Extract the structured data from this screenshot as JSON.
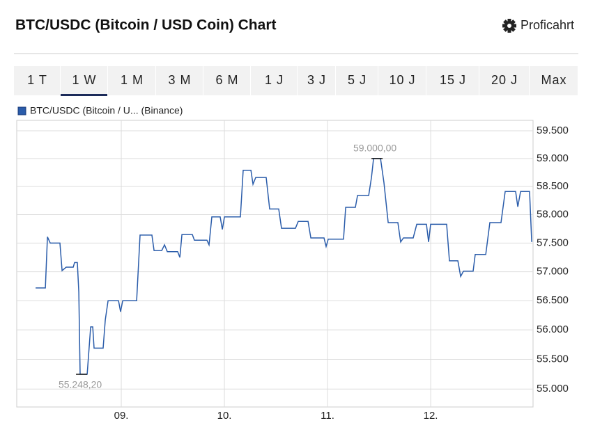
{
  "header": {
    "title": "BTC/USDC (Bitcoin / USD Coin) Chart",
    "link": "Proficahrt"
  },
  "tabs": [
    "1 T",
    "1 W",
    "1 M",
    "3 M",
    "6 M",
    "1 J",
    "3 J",
    "5 J",
    "10 J",
    "15 J",
    "20 J",
    "Max"
  ],
  "selected_tab": 1,
  "chart_data": {
    "type": "line",
    "log_scale": true,
    "grid": true,
    "x": [
      8.169,
      8.264,
      8.284,
      8.311,
      8.405,
      8.426,
      8.466,
      8.534,
      8.547,
      8.574,
      8.588,
      8.601,
      8.669,
      8.703,
      8.723,
      8.736,
      8.824,
      8.845,
      8.872,
      8.973,
      8.993,
      9.014,
      9.149,
      9.182,
      9.297,
      9.318,
      9.392,
      9.419,
      9.446,
      9.547,
      9.568,
      9.588,
      9.689,
      9.709,
      9.831,
      9.851,
      9.878,
      9.959,
      9.98,
      10.0,
      10.155,
      10.182,
      10.257,
      10.277,
      10.304,
      10.405,
      10.439,
      10.527,
      10.554,
      10.689,
      10.716,
      10.811,
      10.838,
      10.966,
      10.986,
      11.007,
      11.155,
      11.176,
      11.27,
      11.291,
      11.399,
      11.426,
      11.446,
      11.514,
      11.547,
      11.588,
      11.682,
      11.709,
      11.736,
      11.831,
      11.865,
      11.959,
      11.98,
      12.0,
      12.155,
      12.182,
      12.264,
      12.291,
      12.318,
      12.412,
      12.432,
      12.534,
      12.574,
      12.682,
      12.723,
      12.824,
      12.845,
      12.872,
      12.959,
      12.98
    ],
    "series": [
      {
        "name": "BTC/USDC (Bitcoin / U... (Binance)",
        "color": "#2a5caa",
        "values": [
          56720,
          56720,
          57610,
          57500,
          57500,
          57020,
          57080,
          57080,
          57160,
          57160,
          56650,
          55248.2,
          55248.2,
          56050,
          56050,
          55690,
          55690,
          56170,
          56500,
          56500,
          56310,
          56500,
          56500,
          57640,
          57640,
          57370,
          57370,
          57470,
          57350,
          57350,
          57250,
          57650,
          57650,
          57550,
          57550,
          57470,
          57960,
          57960,
          57740,
          57960,
          57960,
          58790,
          58790,
          58540,
          58660,
          58660,
          58100,
          58100,
          57760,
          57760,
          57880,
          57880,
          57590,
          57590,
          57440,
          57570,
          57570,
          58130,
          58130,
          58340,
          58340,
          58660,
          59000,
          59000,
          58570,
          57860,
          57860,
          57520,
          57590,
          57590,
          57830,
          57830,
          57520,
          57830,
          57830,
          57190,
          57190,
          56920,
          57010,
          57010,
          57300,
          57300,
          57860,
          57860,
          58410,
          58410,
          58140,
          58410,
          58410,
          57520
        ]
      }
    ],
    "annotations": [
      {
        "x": 11.48,
        "value": 59000,
        "label": "59.000,00",
        "position": "above"
      },
      {
        "x": 8.615,
        "value": 55248.2,
        "label": "55.248,20",
        "position": "below"
      }
    ],
    "xlim": [
      7.986,
      12.993
    ],
    "xticks": [
      {
        "value": 9,
        "label": "09."
      },
      {
        "value": 10,
        "label": "10."
      },
      {
        "value": 11,
        "label": "11."
      },
      {
        "value": 12,
        "label": "12."
      }
    ],
    "ylim": [
      54700,
      59690
    ],
    "yticks": [
      {
        "value": 55000,
        "label": "55.000"
      },
      {
        "value": 55500,
        "label": "55.500"
      },
      {
        "value": 56000,
        "label": "56.000"
      },
      {
        "value": 56500,
        "label": "56.500"
      },
      {
        "value": 57000,
        "label": "57.000"
      },
      {
        "value": 57500,
        "label": "57.500"
      },
      {
        "value": 58000,
        "label": "58.000"
      },
      {
        "value": 58500,
        "label": "58.500"
      },
      {
        "value": 59000,
        "label": "59.000"
      },
      {
        "value": 59500,
        "label": "59.500"
      }
    ]
  }
}
